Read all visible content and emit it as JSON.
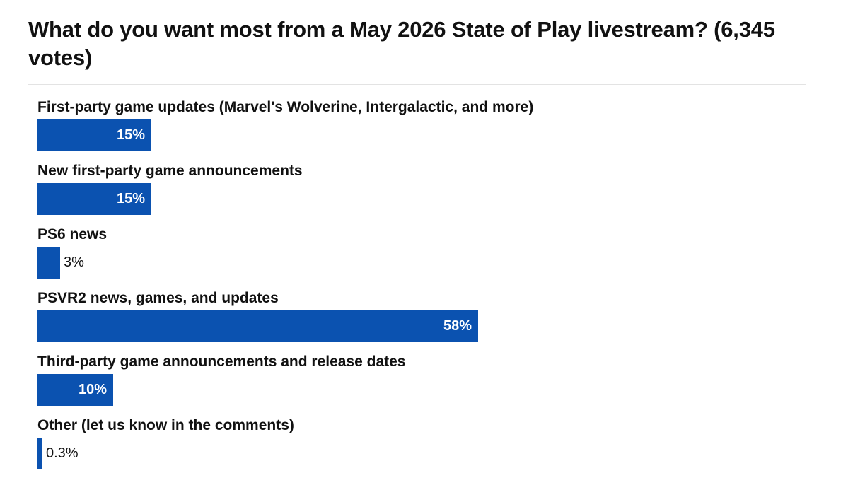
{
  "chart_data": {
    "type": "bar",
    "orientation": "horizontal",
    "title": "What do you want most from a May 2026 State of Play livestream? (6,345 votes)",
    "categories": [
      "First-party game updates (Marvel's Wolverine, Intergalactic, and more)",
      "New first-party game announcements",
      "PS6 news",
      "PSVR2 news, games, and updates",
      "Third-party game announcements and release dates",
      "Other (let us know in the comments)"
    ],
    "values": [
      15,
      15,
      3,
      58,
      10,
      0.3
    ],
    "value_labels": [
      "15%",
      "15%",
      "3%",
      "58%",
      "10%",
      "0.3%"
    ],
    "unit": "%",
    "xlim": [
      0,
      100
    ],
    "grid": false,
    "legend": "none",
    "bar_color": "#0b52b0"
  }
}
